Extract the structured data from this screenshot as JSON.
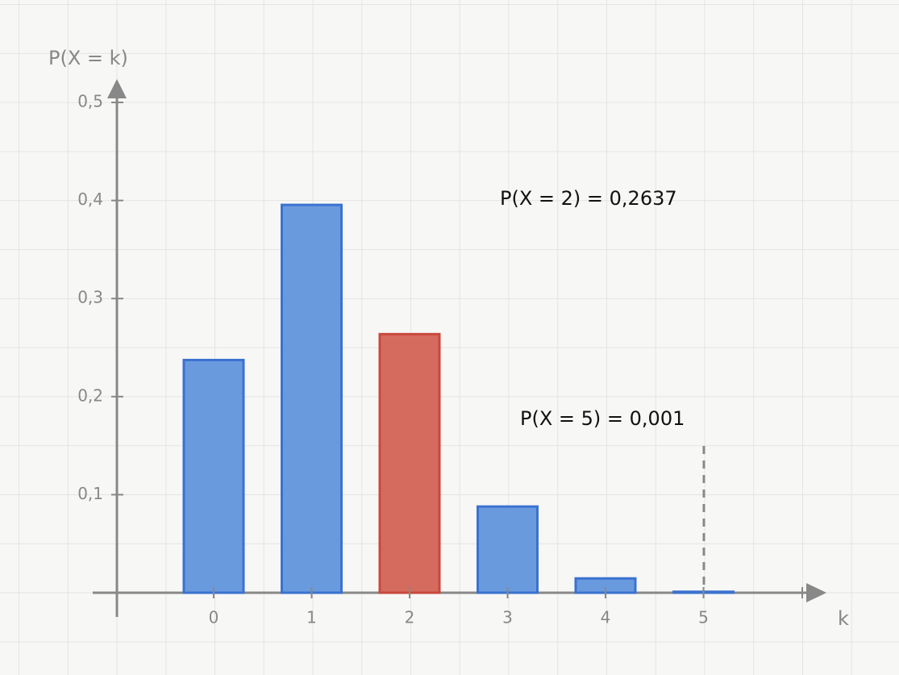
{
  "chart_data": {
    "type": "bar",
    "x_label": "k",
    "y_label": "P(X = k)",
    "categories": [
      "0",
      "1",
      "2",
      "3",
      "4",
      "5"
    ],
    "values": [
      0.2373,
      0.3955,
      0.2637,
      0.0879,
      0.0146,
      0.001
    ],
    "colors": [
      "#6a9ade",
      "#6a9ade",
      "#d46b5e",
      "#6a9ade",
      "#6a9ade",
      "#6a9ade"
    ],
    "ylim": [
      0,
      0.5
    ],
    "yticks": [
      {
        "value": 0.1,
        "label": "0,1"
      },
      {
        "value": 0.2,
        "label": "0,2"
      },
      {
        "value": 0.3,
        "label": "0,3"
      },
      {
        "value": 0.4,
        "label": "0,4"
      },
      {
        "value": 0.5,
        "label": "0,5"
      }
    ],
    "annotations": [
      "P(X = 2) = 0,2637",
      "P(X = 5) = 0,001"
    ]
  }
}
